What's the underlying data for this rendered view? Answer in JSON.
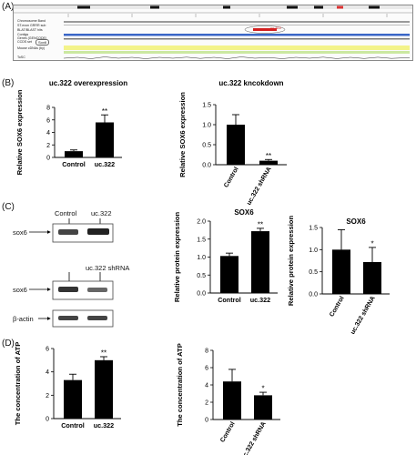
{
  "panel_labels": {
    "a": "(A)",
    "b": "(B)",
    "c": "(C)",
    "d": "(D)"
  },
  "genome_browser": {
    "tracks": [
      "Chromosome Band",
      "ST.exon GRRR sub",
      "BLAT/BLAST hits",
      "Contigs",
      "Genes (GENCODE)",
      "CCDS set",
      "Mouse cDNAs (by)",
      "ToSC"
    ],
    "region_label": "uc.322",
    "gene_label": "Sox6"
  },
  "western_blot": {
    "top_lane_left": "Control",
    "top_lane_right": "uc.322",
    "mid_lane_right": "uc.322 shRNA",
    "row1": "sox6",
    "row2": "sox6",
    "row3": "β-actin"
  },
  "colors": {
    "bar": "#000000",
    "axis": "#000000",
    "browser_blue": "#3a66c7",
    "browser_yellow": "#f3f38a",
    "browser_green": "#cbe8a0"
  },
  "chart_data": [
    {
      "id": "b1",
      "type": "bar",
      "title": "uc.322 overexpression",
      "ylabel": "Relative  SOX6 expression",
      "categories": [
        "Control",
        "uc.322"
      ],
      "values": [
        1.0,
        5.6
      ],
      "errors": [
        0.2,
        1.2
      ],
      "ylim": [
        0,
        8
      ],
      "yticks": [
        "0",
        "2",
        "4",
        "6",
        "8"
      ],
      "annotations": [
        "",
        "**"
      ]
    },
    {
      "id": "b2",
      "type": "bar",
      "title": "uc.322 kncokdown",
      "ylabel": "Relative  SOX6 expression",
      "categories": [
        "Control",
        "uc.322 shRNA"
      ],
      "values": [
        1.0,
        0.1
      ],
      "errors": [
        0.25,
        0.03
      ],
      "ylim": [
        0,
        1.5
      ],
      "yticks": [
        "0.0",
        "0.5",
        "1.0",
        "1.5"
      ],
      "annotations": [
        "",
        "**"
      ]
    },
    {
      "id": "c1",
      "type": "bar",
      "title": "SOX6",
      "ylabel": "Relative  protein expression",
      "categories": [
        "Control",
        "uc.322"
      ],
      "values": [
        1.03,
        1.72
      ],
      "errors": [
        0.08,
        0.08
      ],
      "ylim": [
        0,
        2.0
      ],
      "yticks": [
        "0.0",
        "0.5",
        "1.0",
        "1.5",
        "2.0"
      ],
      "annotations": [
        "",
        "**"
      ]
    },
    {
      "id": "c2",
      "type": "bar",
      "title": "SOX6",
      "ylabel": "Relative  protein expression",
      "categories": [
        "Control",
        "uc.322 shRNA"
      ],
      "values": [
        1.0,
        0.72
      ],
      "errors": [
        0.45,
        0.33
      ],
      "ylim": [
        0,
        1.5
      ],
      "yticks": [
        "0.0",
        "0.5",
        "1.0",
        "1.5"
      ],
      "annotations": [
        "",
        "*"
      ]
    },
    {
      "id": "d1",
      "type": "bar",
      "title": "",
      "ylabel": "The concentration of ATP",
      "categories": [
        "Control",
        "uc.322"
      ],
      "values": [
        3.3,
        5.0
      ],
      "errors": [
        0.5,
        0.3
      ],
      "ylim": [
        0,
        6
      ],
      "yticks": [
        "0",
        "2",
        "4",
        "6"
      ],
      "annotations": [
        "",
        "**"
      ]
    },
    {
      "id": "d2",
      "type": "bar",
      "title": "",
      "ylabel": "The concentration of ATP",
      "categories": [
        "Control",
        "uc.322 shRNA"
      ],
      "values": [
        4.4,
        2.8
      ],
      "errors": [
        1.4,
        0.35
      ],
      "ylim": [
        0,
        8
      ],
      "yticks": [
        "0",
        "2",
        "4",
        "6",
        "8"
      ],
      "annotations": [
        "",
        "*"
      ]
    }
  ]
}
